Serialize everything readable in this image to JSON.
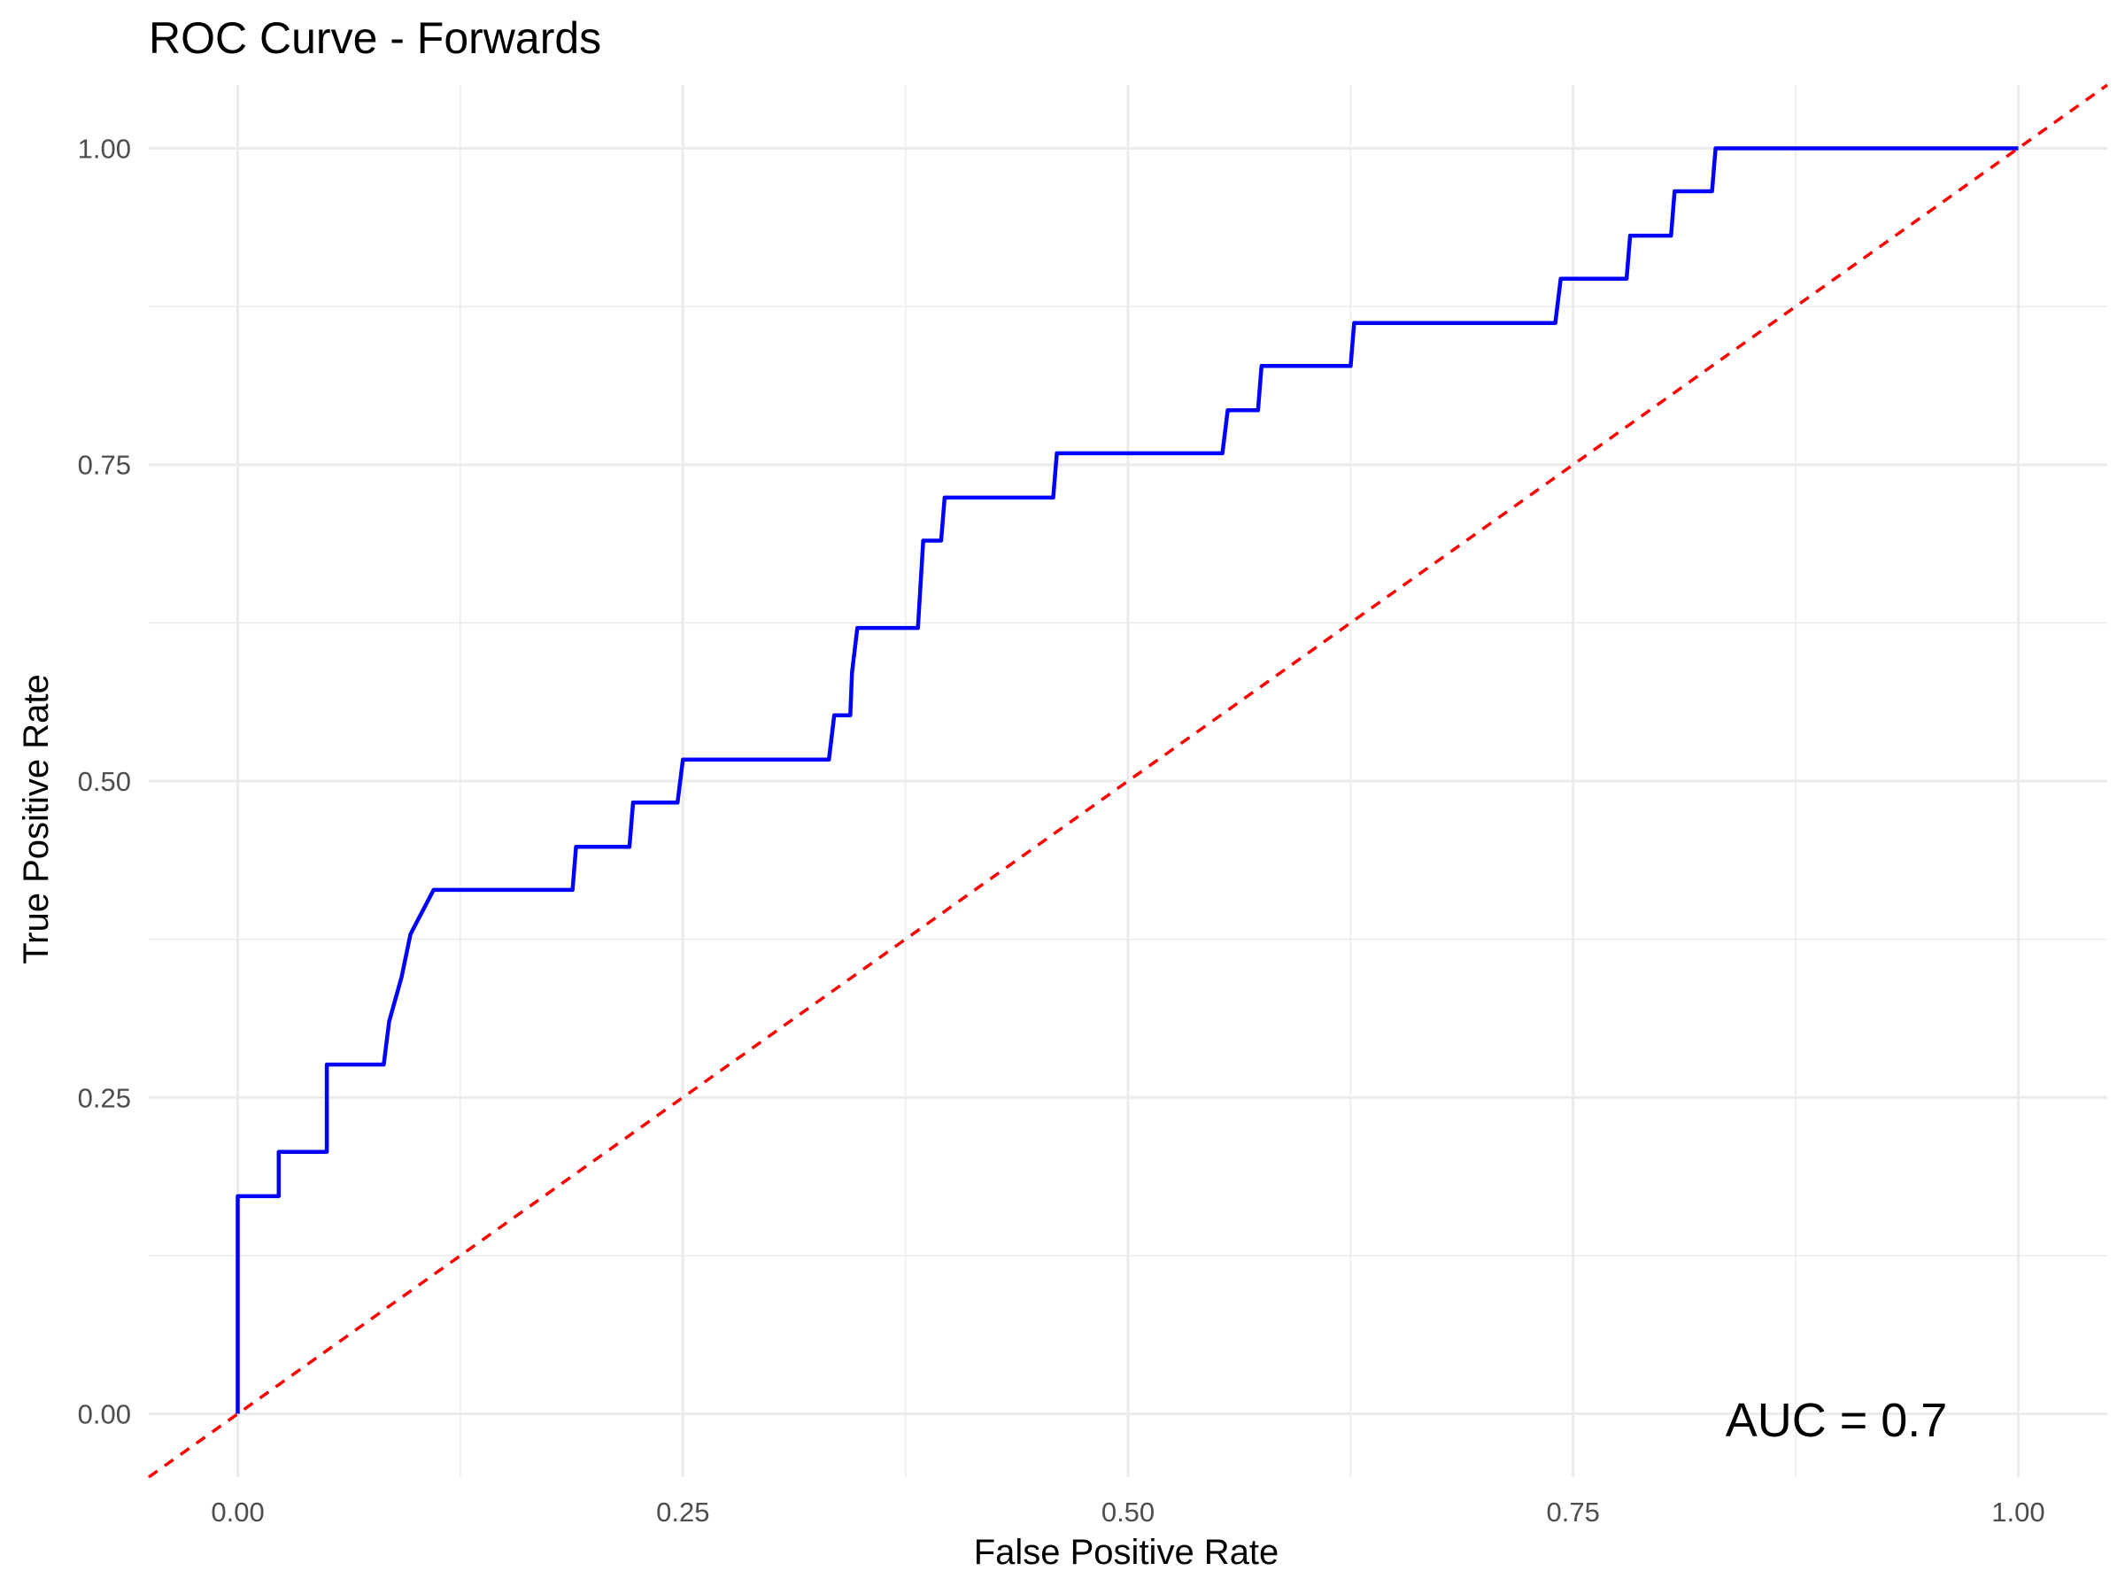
{
  "chart_data": {
    "type": "line",
    "title": "ROC Curve - Forwards",
    "xlabel": "False Positive Rate",
    "ylabel": "True Positive Rate",
    "xlim": [
      -0.05,
      1.05
    ],
    "ylim": [
      -0.05,
      1.05
    ],
    "x_ticks": [
      0.0,
      0.25,
      0.5,
      0.75,
      1.0
    ],
    "x_tick_labels": [
      "0.00",
      "0.25",
      "0.50",
      "0.75",
      "1.00"
    ],
    "y_ticks": [
      0.0,
      0.25,
      0.5,
      0.75,
      1.0
    ],
    "y_tick_labels": [
      "0.00",
      "0.25",
      "0.50",
      "0.75",
      "1.00"
    ],
    "grid": true,
    "annotation": "AUC = 0.7",
    "series": [
      {
        "color": "#0000ff",
        "style": "solid",
        "x": [
          0.0,
          0.0,
          0.023,
          0.023,
          0.05,
          0.05,
          0.082,
          0.085,
          0.092,
          0.097,
          0.11,
          0.188,
          0.19,
          0.22,
          0.222,
          0.247,
          0.25,
          0.332,
          0.335,
          0.344,
          0.345,
          0.348,
          0.382,
          0.385,
          0.395,
          0.397,
          0.458,
          0.46,
          0.553,
          0.556,
          0.573,
          0.575,
          0.625,
          0.627,
          0.74,
          0.743,
          0.78,
          0.782,
          0.805,
          0.807,
          0.828,
          0.83,
          1.0
        ],
        "y": [
          0.0,
          0.172,
          0.172,
          0.207,
          0.207,
          0.276,
          0.276,
          0.31,
          0.345,
          0.379,
          0.414,
          0.414,
          0.448,
          0.448,
          0.483,
          0.483,
          0.517,
          0.517,
          0.552,
          0.552,
          0.586,
          0.621,
          0.621,
          0.69,
          0.69,
          0.724,
          0.724,
          0.759,
          0.759,
          0.793,
          0.793,
          0.828,
          0.828,
          0.862,
          0.862,
          0.897,
          0.897,
          0.931,
          0.931,
          0.966,
          0.966,
          1.0,
          1.0
        ]
      },
      {
        "color": "#ff0000",
        "style": "dashed",
        "x": [
          -0.05,
          1.05
        ],
        "y": [
          -0.05,
          1.05
        ]
      }
    ]
  }
}
